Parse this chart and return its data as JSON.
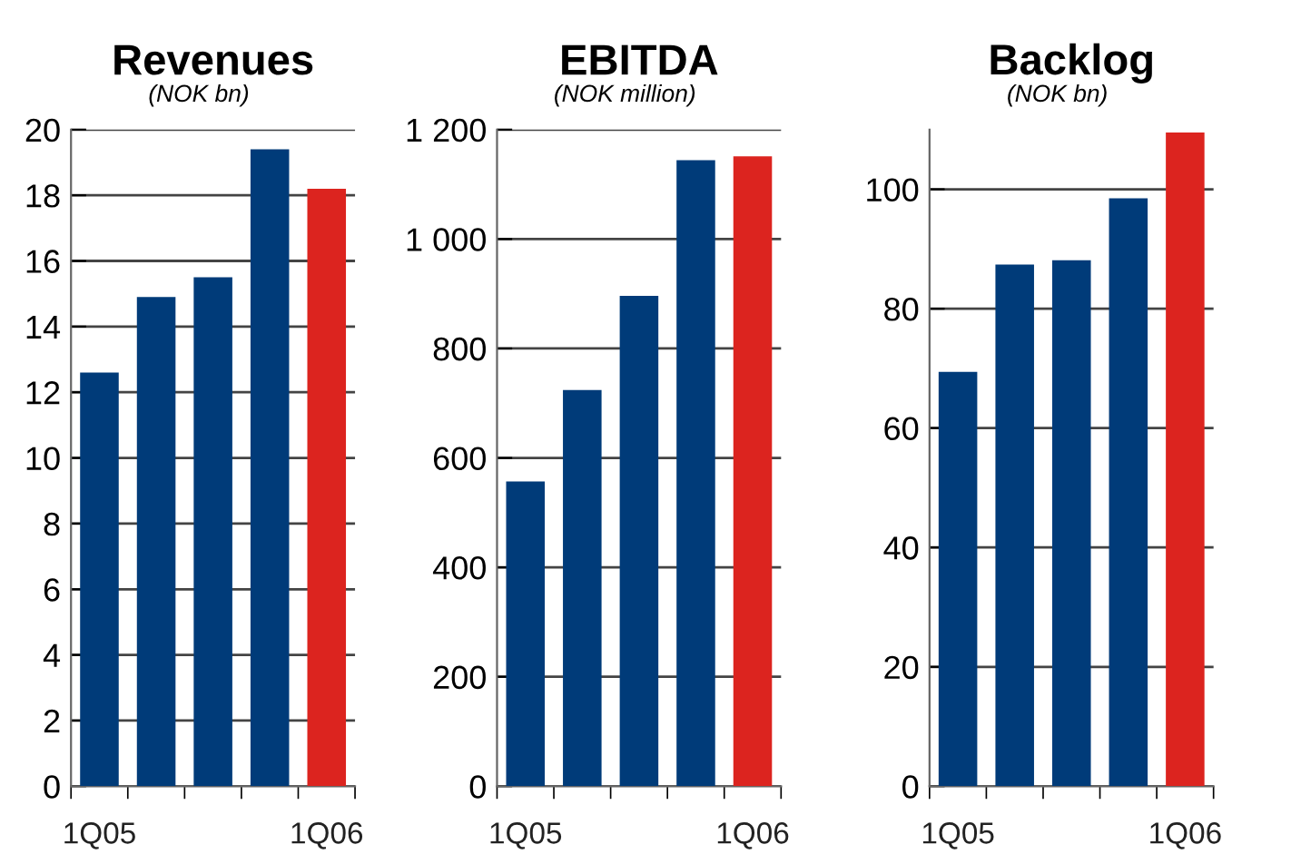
{
  "chart_data": [
    {
      "type": "bar",
      "title": "Revenues",
      "subtitle": "(NOK bn)",
      "categories": [
        "1Q05",
        null,
        null,
        null,
        "1Q06"
      ],
      "values": [
        12.6,
        14.9,
        15.5,
        19.4,
        18.2
      ],
      "colors": [
        "#003b79",
        "#003b79",
        "#003b79",
        "#003b79",
        "#dc241f"
      ],
      "ylim": [
        0,
        20
      ],
      "yticks": [
        0,
        2,
        4,
        6,
        8,
        10,
        12,
        14,
        16,
        18,
        20
      ],
      "grid": "y",
      "legend": false
    },
    {
      "type": "bar",
      "title": "EBITDA",
      "subtitle": "(NOK million)",
      "categories": [
        "1Q05",
        null,
        null,
        null,
        "1Q06"
      ],
      "values": [
        557,
        724,
        896,
        1144,
        1151
      ],
      "colors": [
        "#003b79",
        "#003b79",
        "#003b79",
        "#003b79",
        "#dc241f"
      ],
      "ylim": [
        0,
        1200
      ],
      "yticks": [
        0,
        200,
        400,
        600,
        800,
        {
          "value": 1000,
          "label": "1 000"
        },
        {
          "value": 1200,
          "label": "1 200"
        }
      ],
      "grid": "y",
      "legend": false
    },
    {
      "type": "bar",
      "title": "Backlog",
      "subtitle": "(NOK bn)",
      "categories": [
        "1Q05",
        null,
        null,
        null,
        "1Q06"
      ],
      "values": [
        69.4,
        87.4,
        88.1,
        98.5,
        109.5
      ],
      "colors": [
        "#003b79",
        "#003b79",
        "#003b79",
        "#003b79",
        "#dc241f"
      ],
      "ylim": [
        0,
        110
      ],
      "yticks": [
        0,
        20,
        40,
        60,
        80,
        100
      ],
      "grid": "y",
      "legend": false
    }
  ]
}
